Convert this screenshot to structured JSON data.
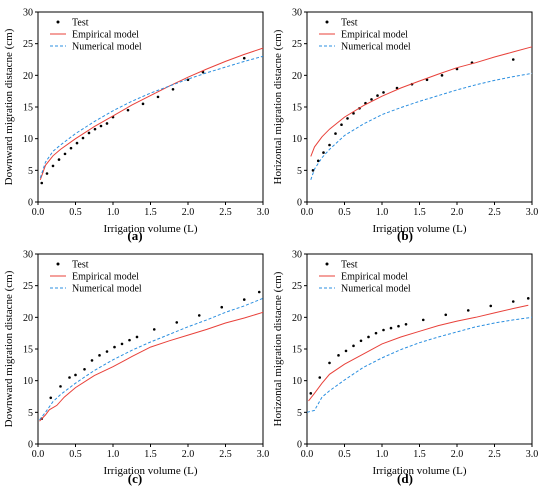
{
  "colors": {
    "test": "#000000",
    "empirical": "#e8413a",
    "numerical": "#2b8fe0",
    "axis": "#000000"
  },
  "legend_labels": {
    "test": "Test",
    "empirical": "Empirical model",
    "numerical": "Numerical model"
  },
  "chart_data": [
    {
      "panel": "a",
      "caption": "(a)",
      "type": "line",
      "xlabel": "Irrigation volume (L)",
      "ylabel": "Downward migration distacne (cm)",
      "xlim": [
        0,
        3.0
      ],
      "ylim": [
        0,
        30
      ],
      "xticks": [
        "0.0",
        "0.5",
        "1.0",
        "1.5",
        "2.0",
        "2.5",
        "3.0"
      ],
      "yticks": [
        "0",
        "5",
        "10",
        "15",
        "20",
        "25",
        "30"
      ],
      "legend": "top-left",
      "series": [
        {
          "name": "Test",
          "kind": "scatter",
          "x": [
            0.05,
            0.12,
            0.2,
            0.28,
            0.36,
            0.44,
            0.52,
            0.6,
            0.68,
            0.76,
            0.84,
            0.92,
            1.0,
            1.2,
            1.4,
            1.6,
            1.8,
            2.0,
            2.2,
            2.75
          ],
          "y": [
            3.0,
            4.5,
            5.7,
            6.7,
            7.6,
            8.5,
            9.3,
            10.1,
            10.9,
            11.5,
            12.0,
            12.4,
            13.4,
            14.5,
            15.5,
            16.6,
            17.8,
            19.3,
            20.5,
            22.7
          ]
        },
        {
          "name": "Empirical model",
          "kind": "line",
          "x": [
            0.03,
            0.1,
            0.2,
            0.3,
            0.5,
            0.75,
            1.0,
            1.25,
            1.5,
            1.75,
            2.0,
            2.25,
            2.5,
            2.75,
            3.0
          ],
          "y": [
            3.5,
            5.8,
            7.3,
            8.3,
            10.0,
            11.9,
            13.6,
            15.3,
            16.8,
            18.3,
            19.7,
            21.0,
            22.2,
            23.3,
            24.3
          ]
        },
        {
          "name": "Numerical model",
          "kind": "dashed",
          "x": [
            0.03,
            0.1,
            0.2,
            0.3,
            0.5,
            0.75,
            1.0,
            1.25,
            1.5,
            1.75,
            2.0,
            2.25,
            2.5,
            2.75,
            3.0
          ],
          "y": [
            3.8,
            6.3,
            8.0,
            9.0,
            10.8,
            12.7,
            14.4,
            15.9,
            17.2,
            18.3,
            19.4,
            20.4,
            21.3,
            22.2,
            23.0
          ]
        }
      ]
    },
    {
      "panel": "b",
      "caption": "(b)",
      "type": "line",
      "xlabel": "Irrigation volume (L)",
      "ylabel": "Horizontal migration distacne (cm)",
      "xlim": [
        0,
        3.0
      ],
      "ylim": [
        0,
        30
      ],
      "xticks": [
        "0.0",
        "0.5",
        "1.0",
        "1.5",
        "2.0",
        "2.5",
        "3.0"
      ],
      "yticks": [
        "0",
        "5",
        "10",
        "15",
        "20",
        "25",
        "30"
      ],
      "legend": "top-left",
      "series": [
        {
          "name": "Test",
          "kind": "scatter",
          "x": [
            0.08,
            0.15,
            0.22,
            0.3,
            0.38,
            0.46,
            0.54,
            0.62,
            0.7,
            0.78,
            0.86,
            0.94,
            1.02,
            1.2,
            1.4,
            1.6,
            1.8,
            2.0,
            2.2,
            2.75
          ],
          "y": [
            5.0,
            6.5,
            7.8,
            9.0,
            10.8,
            12.2,
            13.2,
            14.0,
            14.8,
            15.6,
            16.2,
            16.8,
            17.3,
            18.0,
            18.6,
            19.3,
            20.0,
            21.0,
            22.0,
            22.5
          ]
        },
        {
          "name": "Empirical model",
          "kind": "line",
          "x": [
            0.05,
            0.1,
            0.2,
            0.3,
            0.5,
            0.75,
            1.0,
            1.25,
            1.5,
            1.75,
            2.0,
            2.25,
            2.5,
            2.75,
            3.0
          ],
          "y": [
            7.2,
            8.7,
            10.3,
            11.5,
            13.4,
            15.2,
            16.7,
            18.0,
            19.1,
            20.2,
            21.2,
            22.0,
            22.9,
            23.7,
            24.5
          ]
        },
        {
          "name": "Numerical model",
          "kind": "dashed",
          "x": [
            0.05,
            0.1,
            0.2,
            0.3,
            0.5,
            0.75,
            1.0,
            1.25,
            1.5,
            1.75,
            2.0,
            2.25,
            2.5,
            2.75,
            3.0
          ],
          "y": [
            3.5,
            5.2,
            7.0,
            8.3,
            10.5,
            12.3,
            13.8,
            14.9,
            15.9,
            16.8,
            17.7,
            18.5,
            19.2,
            19.8,
            20.3
          ]
        }
      ]
    },
    {
      "panel": "c",
      "caption": "(c)",
      "type": "line",
      "xlabel": "Irrigation volume (L)",
      "ylabel": "Downward migration distacne (cm)",
      "xlim": [
        0,
        3.0
      ],
      "ylim": [
        0,
        30
      ],
      "xticks": [
        "0.0",
        "0.5",
        "1.0",
        "1.5",
        "2.0",
        "2.5",
        "3.0"
      ],
      "yticks": [
        "0",
        "5",
        "10",
        "15",
        "20",
        "25",
        "30"
      ],
      "legend": "top-left",
      "series": [
        {
          "name": "Test",
          "kind": "scatter",
          "x": [
            0.05,
            0.17,
            0.3,
            0.42,
            0.5,
            0.62,
            0.72,
            0.82,
            0.92,
            1.02,
            1.12,
            1.22,
            1.32,
            1.55,
            1.85,
            2.15,
            2.45,
            2.75,
            2.95
          ],
          "y": [
            4.0,
            7.3,
            9.1,
            10.5,
            10.9,
            11.8,
            13.2,
            14.0,
            14.6,
            15.3,
            15.8,
            16.4,
            16.9,
            18.1,
            19.2,
            20.3,
            21.6,
            22.8,
            24.0
          ]
        },
        {
          "name": "Empirical model",
          "kind": "line",
          "x": [
            0.02,
            0.1,
            0.15,
            0.25,
            0.35,
            0.5,
            0.75,
            1.0,
            1.25,
            1.5,
            1.75,
            2.0,
            2.25,
            2.5,
            2.75,
            3.0
          ],
          "y": [
            3.6,
            4.6,
            5.4,
            6.1,
            7.4,
            8.9,
            10.8,
            12.2,
            13.8,
            15.3,
            16.3,
            17.2,
            18.1,
            19.1,
            19.9,
            20.8
          ]
        },
        {
          "name": "Numerical model",
          "kind": "dashed",
          "x": [
            0.02,
            0.1,
            0.2,
            0.3,
            0.5,
            0.75,
            1.0,
            1.25,
            1.5,
            1.75,
            2.0,
            2.25,
            2.5,
            2.75,
            3.0
          ],
          "y": [
            3.8,
            5.0,
            6.7,
            7.8,
            9.6,
            11.6,
            13.3,
            14.8,
            16.1,
            17.3,
            18.5,
            19.6,
            20.8,
            21.8,
            23.0
          ]
        }
      ]
    },
    {
      "panel": "d",
      "caption": "(d)",
      "type": "line",
      "xlabel": "Irrigation volume (L)",
      "ylabel": "Horizontal migration distacne (cm)",
      "xlim": [
        0,
        3.0
      ],
      "ylim": [
        0,
        30
      ],
      "xticks": [
        "0.0",
        "0.5",
        "1.0",
        "1.5",
        "2.0",
        "2.5",
        "3.0"
      ],
      "yticks": [
        "0",
        "5",
        "10",
        "15",
        "20",
        "25",
        "30"
      ],
      "legend": "top-left",
      "series": [
        {
          "name": "Test",
          "kind": "scatter",
          "x": [
            0.05,
            0.17,
            0.3,
            0.42,
            0.52,
            0.62,
            0.72,
            0.82,
            0.92,
            1.02,
            1.12,
            1.22,
            1.32,
            1.55,
            1.85,
            2.15,
            2.45,
            2.75,
            2.95
          ],
          "y": [
            8.0,
            10.5,
            12.8,
            14.0,
            14.7,
            15.5,
            16.3,
            16.9,
            17.5,
            18.0,
            18.3,
            18.6,
            18.9,
            19.6,
            20.4,
            21.1,
            21.8,
            22.5,
            23.0
          ]
        },
        {
          "name": "Empirical model",
          "kind": "line",
          "x": [
            0.02,
            0.1,
            0.2,
            0.3,
            0.5,
            0.75,
            1.0,
            1.25,
            1.5,
            1.75,
            2.0,
            2.25,
            2.5,
            2.75,
            2.95
          ],
          "y": [
            6.8,
            8.0,
            9.6,
            11.0,
            12.6,
            14.2,
            15.8,
            16.9,
            17.8,
            18.7,
            19.4,
            20.0,
            20.7,
            21.4,
            21.9
          ]
        },
        {
          "name": "Numerical model",
          "kind": "dashed",
          "x": [
            0.0,
            0.1,
            0.2,
            0.3,
            0.5,
            0.75,
            1.0,
            1.25,
            1.5,
            1.75,
            2.0,
            2.25,
            2.5,
            2.75,
            3.0
          ],
          "y": [
            5.0,
            5.3,
            7.4,
            8.4,
            10.1,
            12.1,
            13.6,
            14.9,
            16.0,
            16.9,
            17.7,
            18.5,
            19.1,
            19.6,
            20.0
          ]
        }
      ]
    }
  ]
}
